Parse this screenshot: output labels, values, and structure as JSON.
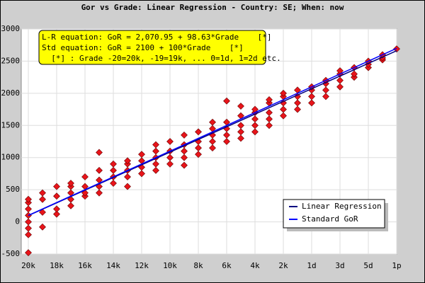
{
  "chart_data": {
    "type": "scatter",
    "title": "Gor vs Grade: Linear Regression - Country: SE; When: now",
    "annotation": [
      "L-R equation: GoR = 2,070.95 + 98.63*Grade    [*]",
      "Std equation: GoR = 2100 + 100*Grade    [*]",
      "  [*] : Grade -20=20k, -19=19k, ... 0=1d, 1=2d etc."
    ],
    "xlim": [
      -20.5,
      6
    ],
    "ylim": [
      -500,
      3000
    ],
    "xticks": [
      {
        "value": -20,
        "label": "20k"
      },
      {
        "value": -18,
        "label": "18k"
      },
      {
        "value": -16,
        "label": "16k"
      },
      {
        "value": -14,
        "label": "14k"
      },
      {
        "value": -12,
        "label": "12k"
      },
      {
        "value": -10,
        "label": "10k"
      },
      {
        "value": -8,
        "label": "8k"
      },
      {
        "value": -6,
        "label": "6k"
      },
      {
        "value": -4,
        "label": "4k"
      },
      {
        "value": -2,
        "label": "2k"
      },
      {
        "value": 0,
        "label": "1d"
      },
      {
        "value": 2,
        "label": "3d"
      },
      {
        "value": 4,
        "label": "5d"
      },
      {
        "value": 6,
        "label": "1p"
      }
    ],
    "yticks": [
      -500,
      0,
      500,
      1000,
      1500,
      2000,
      2500,
      3000
    ],
    "grid": true,
    "legend": "lower right",
    "point_color": "#e8141a",
    "points": [
      [
        -20,
        -480
      ],
      [
        -20,
        -200
      ],
      [
        -20,
        -100
      ],
      [
        -20,
        0
      ],
      [
        -20,
        100
      ],
      [
        -20,
        200
      ],
      [
        -20,
        300
      ],
      [
        -20,
        350
      ],
      [
        -19,
        -80
      ],
      [
        -19,
        150
      ],
      [
        -19,
        350
      ],
      [
        -19,
        450
      ],
      [
        -18,
        120
      ],
      [
        -18,
        200
      ],
      [
        -18,
        400
      ],
      [
        -18,
        550
      ],
      [
        -17,
        250
      ],
      [
        -17,
        350
      ],
      [
        -17,
        450
      ],
      [
        -17,
        550
      ],
      [
        -17,
        600
      ],
      [
        -16,
        400
      ],
      [
        -16,
        450
      ],
      [
        -16,
        550
      ],
      [
        -16,
        700
      ],
      [
        -15,
        450
      ],
      [
        -15,
        550
      ],
      [
        -15,
        650
      ],
      [
        -15,
        800
      ],
      [
        -15,
        1080
      ],
      [
        -14,
        600
      ],
      [
        -14,
        700
      ],
      [
        -14,
        800
      ],
      [
        -14,
        900
      ],
      [
        -13,
        550
      ],
      [
        -13,
        700
      ],
      [
        -13,
        800
      ],
      [
        -13,
        900
      ],
      [
        -13,
        950
      ],
      [
        -12,
        750
      ],
      [
        -12,
        850
      ],
      [
        -12,
        950
      ],
      [
        -12,
        1050
      ],
      [
        -11,
        800
      ],
      [
        -11,
        900
      ],
      [
        -11,
        1000
      ],
      [
        -11,
        1100
      ],
      [
        -11,
        1200
      ],
      [
        -10,
        900
      ],
      [
        -10,
        1000
      ],
      [
        -10,
        1100
      ],
      [
        -10,
        1250
      ],
      [
        -9,
        880
      ],
      [
        -9,
        1000
      ],
      [
        -9,
        1100
      ],
      [
        -9,
        1200
      ],
      [
        -9,
        1350
      ],
      [
        -8,
        1050
      ],
      [
        -8,
        1150
      ],
      [
        -8,
        1250
      ],
      [
        -8,
        1400
      ],
      [
        -7,
        1150
      ],
      [
        -7,
        1250
      ],
      [
        -7,
        1350
      ],
      [
        -7,
        1450
      ],
      [
        -7,
        1550
      ],
      [
        -6,
        1250
      ],
      [
        -6,
        1350
      ],
      [
        -6,
        1450
      ],
      [
        -6,
        1550
      ],
      [
        -6,
        1880
      ],
      [
        -5,
        1300
      ],
      [
        -5,
        1400
      ],
      [
        -5,
        1500
      ],
      [
        -5,
        1650
      ],
      [
        -5,
        1800
      ],
      [
        -4,
        1400
      ],
      [
        -4,
        1500
      ],
      [
        -4,
        1600
      ],
      [
        -4,
        1700
      ],
      [
        -4,
        1750
      ],
      [
        -3,
        1500
      ],
      [
        -3,
        1600
      ],
      [
        -3,
        1700
      ],
      [
        -3,
        1850
      ],
      [
        -3,
        1900
      ],
      [
        -2,
        1650
      ],
      [
        -2,
        1750
      ],
      [
        -2,
        1850
      ],
      [
        -2,
        1950
      ],
      [
        -2,
        2000
      ],
      [
        -1,
        1750
      ],
      [
        -1,
        1850
      ],
      [
        -1,
        1950
      ],
      [
        -1,
        2050
      ],
      [
        0,
        1850
      ],
      [
        0,
        1950
      ],
      [
        0,
        2050
      ],
      [
        0,
        2100
      ],
      [
        1,
        1950
      ],
      [
        1,
        2050
      ],
      [
        1,
        2150
      ],
      [
        1,
        2200
      ],
      [
        2,
        2100
      ],
      [
        2,
        2200
      ],
      [
        2,
        2300
      ],
      [
        2,
        2350
      ],
      [
        3,
        2250
      ],
      [
        3,
        2300
      ],
      [
        3,
        2400
      ],
      [
        4,
        2400
      ],
      [
        4,
        2450
      ],
      [
        4,
        2500
      ],
      [
        5,
        2520
      ],
      [
        5,
        2550
      ],
      [
        5,
        2600
      ],
      [
        6,
        2690
      ]
    ],
    "series": [
      {
        "name": "Linear Regression",
        "color": "#000080",
        "x": [
          -20,
          6
        ],
        "y": [
          98.35,
          2662.73
        ]
      },
      {
        "name": "Standard GoR",
        "color": "#0000ff",
        "x": [
          -20,
          6
        ],
        "y": [
          100,
          2700
        ]
      }
    ]
  }
}
